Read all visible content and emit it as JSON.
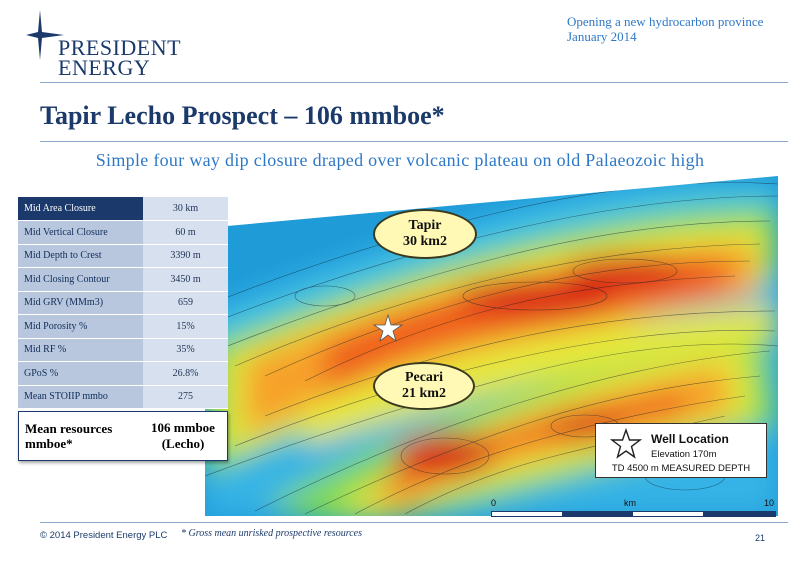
{
  "logo": {
    "line1": "President",
    "line2": "Energy"
  },
  "header_right": {
    "line1": "Opening a new hydrocarbon province",
    "line2": "January 2014"
  },
  "title": "Tapir Lecho Prospect – 106 mmboe*",
  "subtitle": "Simple four way dip closure draped over volcanic plateau on old Palaeozoic high",
  "properties": [
    {
      "label": "Mid Area Closure",
      "value": "30 km"
    },
    {
      "label": "Mid Vertical Closure",
      "value": "60 m"
    },
    {
      "label": "Mid Depth to Crest",
      "value": "3390 m"
    },
    {
      "label": "Mid Closing Contour",
      "value": "3450 m"
    },
    {
      "label": "Mid GRV (MMm3)",
      "value": "659"
    },
    {
      "label": "Mid Porosity %",
      "value": "15%"
    },
    {
      "label": "Mid RF %",
      "value": "35%"
    },
    {
      "label": "GPoS %",
      "value": "26.8%"
    },
    {
      "label": "Mean STOIIP mmbo",
      "value": "275"
    }
  ],
  "mean_resources": {
    "label": "Mean resources mmboe*",
    "value_line1": "106 mmboe",
    "value_line2": "(Lecho)"
  },
  "map_labels": {
    "tapir": {
      "name": "Tapir",
      "area": "30 km2"
    },
    "pecari": {
      "name": "Pecari",
      "area": "21 km2"
    }
  },
  "legend": {
    "title": "Well Location",
    "elevation": "Elevation 170m",
    "depth": "TD 4500 m MEASURED DEPTH"
  },
  "scale": {
    "start": "0",
    "unit": "km",
    "end": "10"
  },
  "footer": {
    "copyright": "© 2014 President Energy PLC",
    "footnote": "* Gross mean unrisked prospective resources",
    "page": "21"
  },
  "colors": {
    "navy": "#1b3a6b",
    "accent_blue": "#2e78c8",
    "bubble_fill": "#fff9b5"
  }
}
